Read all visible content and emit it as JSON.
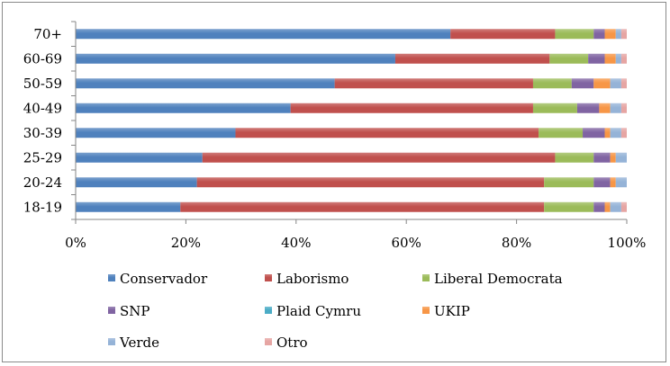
{
  "chart_data": {
    "type": "bar",
    "orientation": "horizontal",
    "stacked": true,
    "percent_stacked": true,
    "categories": [
      "18-19",
      "20-24",
      "25-29",
      "30-39",
      "40-49",
      "50-59",
      "60-69",
      "70+"
    ],
    "series": [
      {
        "name": "Conservador",
        "color": "#4F81BD",
        "values": [
          19,
          22,
          23,
          29,
          39,
          47,
          58,
          68
        ]
      },
      {
        "name": "Laborismo",
        "color": "#C0504D",
        "values": [
          66,
          63,
          64,
          55,
          44,
          36,
          28,
          19
        ]
      },
      {
        "name": "Liberal Democrata",
        "color": "#9BBB59",
        "values": [
          9,
          9,
          7,
          8,
          8,
          7,
          7,
          7
        ]
      },
      {
        "name": "SNP",
        "color": "#8064A2",
        "values": [
          2,
          3,
          3,
          4,
          4,
          4,
          3,
          2
        ]
      },
      {
        "name": "Plaid Cymru",
        "color": "#4BACC6",
        "values": [
          0,
          0,
          0,
          0,
          0,
          0,
          0,
          0
        ]
      },
      {
        "name": "UKIP",
        "color": "#F79646",
        "values": [
          1,
          1,
          1,
          1,
          2,
          3,
          2,
          2
        ]
      },
      {
        "name": "Verde",
        "color": "#95B3D7",
        "values": [
          2,
          2,
          2,
          2,
          2,
          2,
          1,
          1
        ]
      },
      {
        "name": "Otro",
        "color": "#E6A5A3",
        "values": [
          1,
          0,
          0,
          1,
          1,
          1,
          1,
          1
        ]
      }
    ],
    "xlim": [
      0,
      100
    ],
    "xticks": [
      "0%",
      "20%",
      "40%",
      "60%",
      "80%",
      "100%"
    ],
    "grid": false,
    "legend_position": "bottom",
    "title": "",
    "xlabel": "",
    "ylabel": ""
  }
}
